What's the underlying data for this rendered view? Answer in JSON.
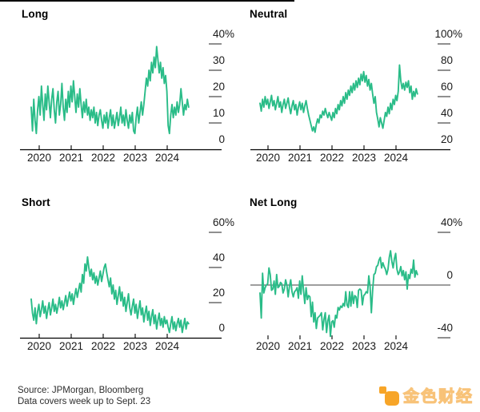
{
  "colors": {
    "line_green": "#2abc88",
    "axis_black": "#000000",
    "tick_gray": "#8f8f8f",
    "zero_line": "#3d3d3d",
    "logo_orange": "#f7a528"
  },
  "footer": {
    "source_line1": "Source: JPMorgan, Bloomberg",
    "source_line2": "Data covers week up to Sept. 23",
    "brand_name": "金色财经"
  },
  "chart_data": [
    {
      "type": "line",
      "title": "Long",
      "side": "left",
      "unit": "%",
      "ylim": [
        0,
        40
      ],
      "grid": false,
      "legend": "none",
      "baseline": true,
      "zero_line": false,
      "y_ticks": [
        {
          "value": 40,
          "label": "40",
          "suffix": "%",
          "dash": true
        },
        {
          "value": 30,
          "label": "30",
          "suffix": "",
          "dash": true
        },
        {
          "value": 20,
          "label": "20",
          "suffix": "",
          "dash": true
        },
        {
          "value": 10,
          "label": "10",
          "suffix": "",
          "dash": true
        },
        {
          "value": 0,
          "label": "0",
          "suffix": "",
          "dash": false
        }
      ],
      "x_ticks": [
        2020,
        2021,
        2022,
        2023,
        2024
      ],
      "x_tick_labels": [
        "2020",
        "2021",
        "2022",
        "2023",
        "2024"
      ],
      "x_start": 2019.75,
      "x_step": 0.04,
      "values": [
        16,
        7,
        19,
        11,
        6,
        15,
        20,
        13,
        24,
        17,
        11,
        21,
        15,
        24,
        18,
        12,
        19,
        23,
        15,
        10,
        18,
        22,
        13,
        17,
        25,
        16,
        11,
        19,
        14,
        22,
        16,
        24,
        18,
        26,
        20,
        14,
        21,
        16,
        23,
        17,
        12,
        18,
        14,
        19,
        13,
        16,
        11,
        15,
        12,
        16,
        10,
        14,
        9,
        13,
        15,
        11,
        8,
        13,
        10,
        14,
        8,
        12,
        15,
        9,
        13,
        8,
        11,
        14,
        9,
        12,
        16,
        10,
        13,
        9,
        15,
        11,
        8,
        13,
        10,
        14,
        7,
        6,
        12,
        16,
        10,
        14,
        18,
        13,
        17,
        22,
        27,
        24,
        30,
        26,
        33,
        29,
        35,
        31,
        39,
        34,
        29,
        33,
        27,
        31,
        25,
        28,
        22,
        9,
        6,
        13,
        17,
        12,
        16,
        13,
        18,
        14,
        17,
        23,
        18,
        13,
        17,
        15,
        19,
        16
      ]
    },
    {
      "type": "line",
      "title": "Neutral",
      "side": "right",
      "unit": "%",
      "ylim": [
        20,
        100
      ],
      "grid": false,
      "legend": "none",
      "baseline": true,
      "zero_line": false,
      "y_ticks": [
        {
          "value": 100,
          "label": "100",
          "suffix": "%",
          "dash": true
        },
        {
          "value": 80,
          "label": "80",
          "suffix": "",
          "dash": true
        },
        {
          "value": 60,
          "label": "60",
          "suffix": "",
          "dash": true
        },
        {
          "value": 40,
          "label": "40",
          "suffix": "",
          "dash": true
        },
        {
          "value": 20,
          "label": "20",
          "suffix": "",
          "dash": false
        }
      ],
      "x_ticks": [
        2020,
        2021,
        2022,
        2023,
        2024
      ],
      "x_tick_labels": [
        "2020",
        "2021",
        "2022",
        "2023",
        "2024"
      ],
      "x_start": 2019.75,
      "x_step": 0.04,
      "values": [
        55,
        49,
        58,
        52,
        60,
        54,
        58,
        51,
        56,
        61,
        53,
        57,
        50,
        55,
        60,
        52,
        56,
        48,
        54,
        58,
        51,
        55,
        59,
        52,
        47,
        53,
        57,
        50,
        54,
        46,
        52,
        56,
        50,
        55,
        48,
        53,
        57,
        51,
        46,
        42,
        38,
        34,
        37,
        33,
        39,
        43,
        40,
        46,
        44,
        49,
        46,
        51,
        47,
        44,
        48,
        45,
        42,
        48,
        44,
        51,
        47,
        54,
        50,
        57,
        53,
        60,
        55,
        63,
        58,
        65,
        61,
        68,
        63,
        70,
        65,
        72,
        67,
        74,
        69,
        77,
        72,
        79,
        71,
        76,
        68,
        73,
        65,
        70,
        62,
        55,
        60,
        48,
        43,
        37,
        44,
        40,
        36,
        42,
        48,
        45,
        52,
        47,
        55,
        50,
        58,
        54,
        61,
        57,
        64,
        84,
        72,
        66,
        70,
        65,
        71,
        67,
        72,
        63,
        68,
        58,
        64,
        60,
        66,
        62
      ]
    },
    {
      "type": "line",
      "title": "Short",
      "side": "left",
      "unit": "%",
      "ylim": [
        0,
        60
      ],
      "grid": false,
      "legend": "none",
      "baseline": true,
      "zero_line": false,
      "y_ticks": [
        {
          "value": 60,
          "label": "60",
          "suffix": "%",
          "dash": true
        },
        {
          "value": 40,
          "label": "40",
          "suffix": "",
          "dash": true
        },
        {
          "value": 20,
          "label": "20",
          "suffix": "",
          "dash": true
        },
        {
          "value": 0,
          "label": "0",
          "suffix": "",
          "dash": false
        }
      ],
      "x_ticks": [
        2020,
        2021,
        2022,
        2023,
        2024
      ],
      "x_tick_labels": [
        "2020",
        "2021",
        "2022",
        "2023",
        "2024"
      ],
      "x_start": 2019.75,
      "x_step": 0.04,
      "values": [
        22,
        14,
        10,
        17,
        8,
        15,
        19,
        12,
        16,
        21,
        14,
        18,
        11,
        16,
        20,
        13,
        17,
        22,
        15,
        19,
        14,
        18,
        23,
        17,
        21,
        16,
        20,
        24,
        18,
        22,
        26,
        21,
        25,
        19,
        24,
        28,
        23,
        27,
        31,
        26,
        36,
        31,
        42,
        38,
        46,
        40,
        35,
        39,
        33,
        37,
        31,
        35,
        30,
        34,
        38,
        32,
        36,
        40,
        42,
        37,
        33,
        29,
        34,
        25,
        30,
        22,
        27,
        19,
        24,
        29,
        21,
        26,
        18,
        23,
        15,
        20,
        25,
        17,
        13,
        18,
        22,
        14,
        19,
        11,
        16,
        21,
        13,
        17,
        9,
        14,
        18,
        10,
        15,
        7,
        12,
        16,
        8,
        13,
        5,
        10,
        14,
        7,
        11,
        6,
        12,
        8,
        10,
        6,
        3,
        8,
        12,
        5,
        9,
        4,
        8,
        11,
        6,
        10,
        3,
        7,
        11,
        5,
        9,
        8
      ]
    },
    {
      "type": "line",
      "title": "Net Long",
      "side": "right",
      "unit": "%",
      "ylim": [
        -40,
        40
      ],
      "grid": false,
      "legend": "none",
      "baseline": false,
      "zero_line": true,
      "y_ticks": [
        {
          "value": 40,
          "label": "40",
          "suffix": "%",
          "dash": true
        },
        {
          "value": 0,
          "label": "0",
          "suffix": "",
          "dash": false
        },
        {
          "value": -40,
          "label": "-40",
          "suffix": "",
          "dash": true
        }
      ],
      "x_ticks": [
        2020,
        2021,
        2022,
        2023,
        2024
      ],
      "x_tick_labels": [
        "2020",
        "2021",
        "2022",
        "2023",
        "2024"
      ],
      "x_start": 2019.75,
      "x_step": 0.04,
      "values": [
        -6,
        -25,
        9,
        -6,
        -2,
        0,
        1,
        13,
        8,
        -4,
        -3,
        3,
        -7,
        8,
        -2,
        -1,
        2,
        1,
        -6,
        -3,
        4,
        0,
        -9,
        -1,
        4,
        -5,
        -9,
        -5,
        -4,
        -2,
        -10,
        3,
        -7,
        7,
        -4,
        -14,
        -2,
        -11,
        -8,
        -9,
        -24,
        -13,
        -28,
        -21,
        -33,
        -25,
        -24,
        -23,
        -21,
        -34,
        -26,
        -21,
        -36,
        -27,
        -23,
        -39,
        -28,
        -27,
        -32,
        -23,
        -25,
        -17,
        -19,
        -16,
        -17,
        -14,
        -16,
        -5,
        -15,
        -17,
        -5,
        -16,
        -5,
        -14,
        -8,
        -9,
        -17,
        -4,
        -3,
        -4,
        -15,
        -8,
        -7,
        -5,
        -6,
        7,
        -1,
        -21,
        -4,
        8,
        9,
        14,
        15,
        19,
        21,
        13,
        17,
        14,
        12,
        8,
        12,
        21,
        26,
        18,
        13,
        20,
        24,
        12,
        8,
        10,
        14,
        7,
        11,
        4,
        10,
        -3,
        8,
        5,
        12,
        9,
        19,
        6,
        11,
        8
      ]
    }
  ]
}
